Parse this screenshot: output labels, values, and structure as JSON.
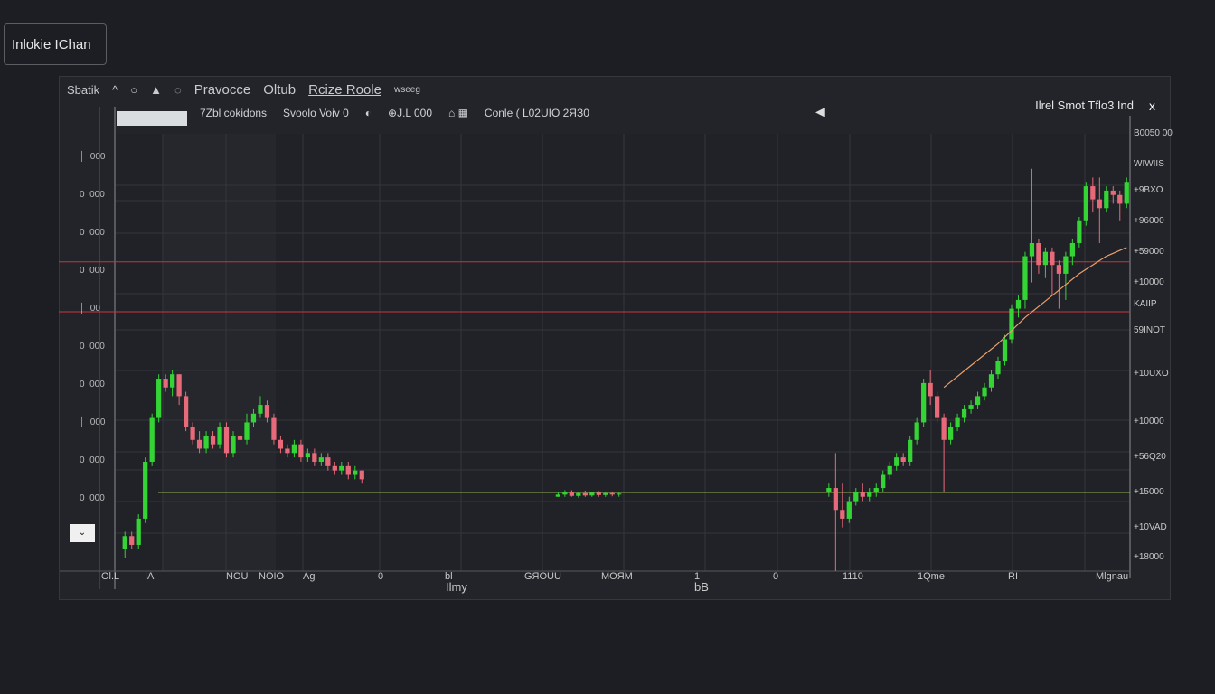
{
  "app_title": "Inlokie IChan",
  "header": {
    "items": [
      "Sbatik",
      "^",
      "○",
      "▲",
      "◌"
    ],
    "title_a": "Pravocce",
    "title_b": "Oltub",
    "title_c": "Rcize Roole",
    "badge": "wseeg"
  },
  "toolbar": {
    "items": [
      "7Zbl cokidons",
      "Svoolo Voiv 0",
      "◐",
      "⊕J.L 000",
      "⌂ ▦",
      "Conle ( L02UIO 2ЯЗ0"
    ],
    "right_title": "Ilrel Smot Tflo3 Ind",
    "close": "x"
  },
  "colors": {
    "up": "#34d435",
    "down": "#e86a7a",
    "level_red": "#c8353a",
    "level_green": "#b8e05a",
    "ma": "#e8a070",
    "grid": "#33363c",
    "bg": "#222429"
  },
  "chart_data": {
    "type": "candlestick",
    "ylim": [
      0,
      100
    ],
    "slots": 150,
    "y_tick_labels": [
      "B0050 00",
      "WIWIIS",
      "+9BXO",
      "+96000",
      "+59000",
      "+10000",
      "KAIIP",
      "59INOT",
      "+10UXO",
      "+10000",
      "+56Q20",
      "+15000",
      "+10VAD",
      "+18000"
    ],
    "y_tick_values": [
      100,
      93,
      87,
      80,
      73,
      66,
      61,
      55,
      45,
      34,
      26,
      18,
      10,
      3
    ],
    "left_labels": [
      "│  000",
      "0  000",
      "0  000",
      "0  000",
      "│  00",
      "0  000",
      "0  000",
      "│  000",
      "0  000",
      "0  000"
    ],
    "x_tick_labels": [
      "Ol.L",
      "IA",
      "NOU",
      "NOIO",
      "Ag",
      "0",
      "bl",
      "GЯOUU",
      "MOЯM",
      "1",
      "0",
      "1110",
      "1Qme",
      "RI",
      "Mlgnau"
    ],
    "x_sub_labels": [
      "Ilmy",
      "bB"
    ],
    "levels": [
      {
        "value": 70.7,
        "color": "red"
      },
      {
        "value": 59.3,
        "color": "red"
      },
      {
        "value": 18,
        "color": "green"
      }
    ],
    "candles": [
      [
        1,
        5,
        9,
        3,
        8
      ],
      [
        2,
        8,
        9,
        5,
        6
      ],
      [
        3,
        6,
        13,
        5,
        12
      ],
      [
        4,
        12,
        26,
        11,
        25
      ],
      [
        5,
        25,
        36,
        24,
        35
      ],
      [
        6,
        35,
        45,
        34,
        44
      ],
      [
        7,
        44,
        45,
        41,
        42
      ],
      [
        8,
        42,
        46,
        40,
        45
      ],
      [
        9,
        45,
        45,
        38,
        40
      ],
      [
        10,
        40,
        41,
        32,
        33
      ],
      [
        11,
        33,
        34,
        29,
        30
      ],
      [
        12,
        30,
        32,
        27,
        28
      ],
      [
        13,
        28,
        32,
        27,
        31
      ],
      [
        14,
        31,
        32,
        28,
        29
      ],
      [
        15,
        29,
        34,
        28,
        33
      ],
      [
        16,
        33,
        34,
        26,
        27
      ],
      [
        17,
        27,
        32,
        26,
        31
      ],
      [
        18,
        31,
        33,
        29,
        30
      ],
      [
        19,
        30,
        36,
        29,
        34
      ],
      [
        20,
        34,
        37,
        33,
        36
      ],
      [
        21,
        36,
        40,
        35,
        38
      ],
      [
        22,
        38,
        39,
        34,
        35
      ],
      [
        23,
        35,
        36,
        29,
        30
      ],
      [
        24,
        30,
        31,
        27,
        28
      ],
      [
        25,
        28,
        29,
        26,
        27
      ],
      [
        26,
        27,
        30,
        26,
        29
      ],
      [
        27,
        29,
        30,
        25,
        26
      ],
      [
        28,
        26,
        28,
        25,
        27
      ],
      [
        29,
        27,
        28,
        24,
        25
      ],
      [
        30,
        25,
        27,
        24,
        26
      ],
      [
        31,
        26,
        27,
        23,
        24
      ],
      [
        32,
        24,
        25,
        22,
        23
      ],
      [
        33,
        23,
        25,
        22,
        24
      ],
      [
        34,
        24,
        25,
        21,
        22
      ],
      [
        35,
        22,
        24,
        21,
        23
      ],
      [
        36,
        23,
        23,
        20,
        21
      ],
      [
        65,
        17,
        18,
        17,
        17.5
      ],
      [
        66,
        17.5,
        18.5,
        17,
        18
      ],
      [
        67,
        18,
        18.5,
        17,
        17.2
      ],
      [
        68,
        17.2,
        18,
        16.8,
        17.8
      ],
      [
        69,
        17.8,
        18.4,
        17,
        17.3
      ],
      [
        70,
        17.3,
        18,
        17,
        17.9
      ],
      [
        71,
        17.9,
        18.3,
        17,
        17.4
      ],
      [
        72,
        17.4,
        18,
        17,
        17.8
      ],
      [
        73,
        17.8,
        18.2,
        17.1,
        17.5
      ],
      [
        74,
        17.5,
        18,
        17,
        17.7
      ],
      [
        105,
        18,
        20,
        17,
        19
      ],
      [
        106,
        19,
        27,
        0,
        14
      ],
      [
        107,
        14,
        20,
        10,
        12
      ],
      [
        108,
        12,
        17,
        11,
        16
      ],
      [
        109,
        16,
        19,
        15,
        18
      ],
      [
        110,
        18,
        20,
        16,
        17
      ],
      [
        111,
        17,
        19,
        16,
        18
      ],
      [
        112,
        18,
        20,
        17,
        19
      ],
      [
        113,
        19,
        23,
        18,
        22
      ],
      [
        114,
        22,
        25,
        21,
        24
      ],
      [
        115,
        24,
        27,
        23,
        26
      ],
      [
        116,
        26,
        27,
        24,
        25
      ],
      [
        117,
        25,
        31,
        24,
        30
      ],
      [
        118,
        30,
        35,
        29,
        34
      ],
      [
        119,
        34,
        44,
        33,
        43
      ],
      [
        120,
        43,
        46,
        38,
        40
      ],
      [
        121,
        40,
        41,
        34,
        35
      ],
      [
        122,
        35,
        36,
        18,
        30
      ],
      [
        123,
        30,
        34,
        29,
        33
      ],
      [
        124,
        33,
        36,
        32,
        35
      ],
      [
        125,
        35,
        38,
        34,
        37
      ],
      [
        126,
        37,
        39,
        36,
        38
      ],
      [
        127,
        38,
        41,
        37,
        40
      ],
      [
        128,
        40,
        43,
        39,
        42
      ],
      [
        129,
        42,
        46,
        41,
        45
      ],
      [
        130,
        45,
        49,
        44,
        48
      ],
      [
        131,
        48,
        54,
        47,
        53
      ],
      [
        132,
        53,
        61,
        52,
        60
      ],
      [
        133,
        60,
        63,
        58,
        62
      ],
      [
        134,
        62,
        73,
        60,
        72
      ],
      [
        135,
        72,
        92,
        66,
        75
      ],
      [
        136,
        75,
        76,
        68,
        70
      ],
      [
        137,
        70,
        74,
        67,
        73
      ],
      [
        138,
        73,
        74,
        63,
        70
      ],
      [
        139,
        70,
        71,
        60,
        68
      ],
      [
        140,
        68,
        73,
        62,
        72
      ],
      [
        141,
        72,
        76,
        70,
        75
      ],
      [
        142,
        75,
        81,
        74,
        80
      ],
      [
        143,
        80,
        89,
        79,
        88
      ],
      [
        144,
        88,
        90,
        82,
        85
      ],
      [
        145,
        85,
        90,
        75,
        83
      ],
      [
        146,
        83,
        88,
        82,
        87
      ],
      [
        147,
        87,
        88,
        84,
        86
      ],
      [
        148,
        86,
        87,
        80,
        84
      ],
      [
        149,
        84,
        90,
        83,
        89
      ]
    ],
    "ma": [
      [
        122,
        42
      ],
      [
        126,
        47
      ],
      [
        130,
        52
      ],
      [
        134,
        58
      ],
      [
        138,
        63
      ],
      [
        142,
        68
      ],
      [
        146,
        72
      ],
      [
        149,
        74
      ]
    ]
  }
}
